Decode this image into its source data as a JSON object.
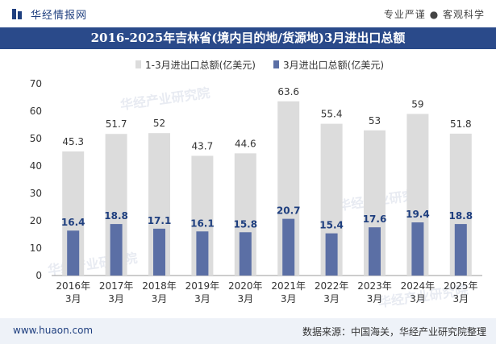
{
  "header": {
    "brand_name": "华经情报网",
    "tagline": "专业严谨 ● 客观科学"
  },
  "title": "2016-2025年吉林省(境内目的地/货源地)3月进出口总额",
  "footer": {
    "website": "www.huaon.com",
    "source": "数据来源：中国海关，华经产业研究院整理"
  },
  "watermark": {
    "text": "华经产业研究院",
    "url": "www.huaon.com"
  },
  "colors": {
    "series_total": "#dcdcdc",
    "series_march": "#5b6fa5",
    "title_band": "#2a4a8a",
    "brand": "#1f3f7f"
  },
  "chart_data": {
    "type": "bar",
    "categories": [
      "2016年\n3月",
      "2017年\n3月",
      "2018年\n3月",
      "2019年\n3月",
      "2020年\n3月",
      "2021年\n3月",
      "2022年\n3月",
      "2023年\n3月",
      "2024年\n3月",
      "2025年\n3月"
    ],
    "series": [
      {
        "name": "1-3月进出口总额(亿美元)",
        "values": [
          45.3,
          51.7,
          52,
          43.7,
          44.6,
          63.6,
          55.4,
          53,
          59,
          51.8
        ]
      },
      {
        "name": "3月进出口总额(亿美元)",
        "values": [
          16.4,
          18.8,
          17.1,
          16.1,
          15.8,
          20.7,
          15.4,
          17.6,
          19.4,
          18.8
        ]
      }
    ],
    "ylim": [
      0,
      70
    ],
    "yticks": [
      0,
      10,
      20,
      30,
      40,
      50,
      60,
      70
    ],
    "legend_position": "top-center",
    "grid": false
  }
}
